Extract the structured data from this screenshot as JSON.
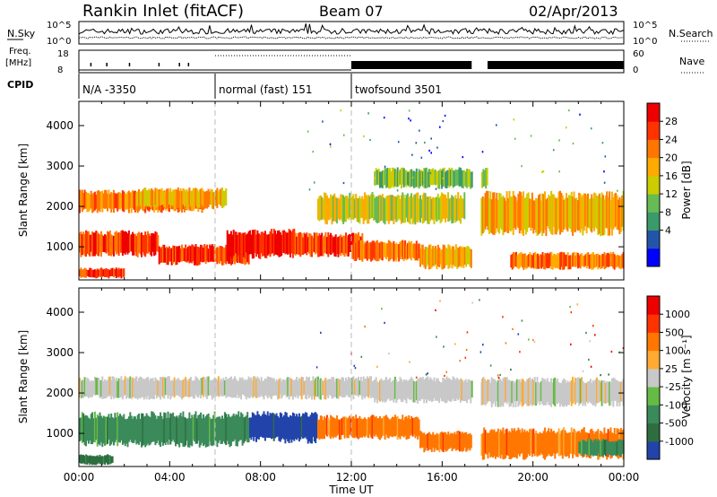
{
  "header": {
    "station": "Rankin Inlet (fitACF)",
    "beam": "Beam 07",
    "date": "02/Apr/2013"
  },
  "noise_panel": {
    "left_label": "N.Sky",
    "right_label": "N.Search",
    "ticks_left": [
      "10^5",
      "10^0"
    ],
    "ticks_right": [
      "10^5",
      "10^0"
    ]
  },
  "freq_panel": {
    "label_line1": "Freq.",
    "label_line2": "[MHz]",
    "right_label": "Nave",
    "ticks_left": [
      "18",
      "8"
    ],
    "ticks_right": [
      "60",
      "0"
    ]
  },
  "cpid": {
    "label": "CPID",
    "segments": [
      {
        "text": "N/A -3350",
        "start_hour": 0.0
      },
      {
        "text": "normal (fast) 151",
        "start_hour": 6.0
      },
      {
        "text": "twofsound 3501",
        "start_hour": 12.0
      }
    ]
  },
  "x_axis": {
    "label": "Time UT",
    "ticks": [
      "00:00",
      "04:00",
      "08:00",
      "12:00",
      "16:00",
      "20:00",
      "00:00"
    ],
    "tick_hours": [
      0,
      4,
      8,
      12,
      16,
      20,
      24
    ]
  },
  "chart_data": [
    {
      "type": "heatmap",
      "name": "power",
      "ylabel": "Slant Range [km]",
      "yticks": [
        "4000",
        "3000",
        "2000",
        "1000"
      ],
      "ytick_values": [
        4000,
        3000,
        2000,
        1000
      ],
      "ylim": [
        180,
        4600
      ],
      "xlim": [
        0,
        24
      ],
      "colorbar": {
        "label": "Power [dB]",
        "tick_labels": [
          "28",
          "24",
          "20",
          "16",
          "12",
          "8",
          "4"
        ],
        "tick_values": [
          28,
          24,
          20,
          16,
          12,
          8,
          4
        ],
        "colors": [
          "#0000ff",
          "#2255aa",
          "#3a9a6a",
          "#66bb55",
          "#cccc00",
          "#ffaa00",
          "#ff7700",
          "#ff3300",
          "#ee0000"
        ]
      },
      "bands": [
        {
          "t0": 0.0,
          "t1": 5.5,
          "r0": 1800,
          "r1": 2450,
          "v": 22
        },
        {
          "t0": 2.5,
          "t1": 6.5,
          "r0": 1900,
          "r1": 2500,
          "v": 17
        },
        {
          "t0": 0.0,
          "t1": 3.5,
          "r0": 700,
          "r1": 1450,
          "v": 24
        },
        {
          "t0": 3.5,
          "t1": 7.5,
          "r0": 500,
          "r1": 1100,
          "v": 23
        },
        {
          "t0": 6.5,
          "t1": 9.5,
          "r0": 650,
          "r1": 1500,
          "v": 27
        },
        {
          "t0": 9.5,
          "t1": 12.5,
          "r0": 700,
          "r1": 1400,
          "v": 24
        },
        {
          "t0": 12.0,
          "t1": 15.0,
          "r0": 600,
          "r1": 1200,
          "v": 22
        },
        {
          "t0": 10.5,
          "t1": 17.0,
          "r0": 1500,
          "r1": 2400,
          "v": 14
        },
        {
          "t0": 15.0,
          "t1": 17.3,
          "r0": 400,
          "r1": 1100,
          "v": 16
        },
        {
          "t0": 17.7,
          "t1": 24.0,
          "r0": 1200,
          "r1": 2450,
          "v": 19
        },
        {
          "t0": 19.0,
          "t1": 24.0,
          "r0": 400,
          "r1": 900,
          "v": 21
        },
        {
          "t0": 0.0,
          "t1": 2.0,
          "r0": 200,
          "r1": 500,
          "v": 26
        },
        {
          "t0": 13.0,
          "t1": 18.0,
          "r0": 2400,
          "r1": 3000,
          "v": 10
        }
      ]
    },
    {
      "type": "heatmap",
      "name": "velocity",
      "ylabel": "Slant Range [km]",
      "yticks": [
        "4000",
        "3000",
        "2000",
        "1000"
      ],
      "ytick_values": [
        4000,
        3000,
        2000,
        1000
      ],
      "ylim": [
        180,
        4600
      ],
      "xlim": [
        0,
        24
      ],
      "colorbar": {
        "label": "Velocity [m s⁻¹]",
        "tick_labels": [
          "1000",
          "500",
          "100",
          "25",
          "-25",
          "-100",
          "-500",
          "-1000"
        ],
        "colors": [
          "#2244aa",
          "#2e6e3e",
          "#3a8a5a",
          "#66bb44",
          "#c8c8c8",
          "#ffaa33",
          "#ff7700",
          "#ff3300",
          "#ee0000"
        ]
      },
      "bands": [
        {
          "t0": 0.0,
          "t1": 13.0,
          "r0": 1800,
          "r1": 2450,
          "v": 4
        },
        {
          "t0": 13.0,
          "t1": 18.0,
          "r0": 1700,
          "r1": 2450,
          "v": 4
        },
        {
          "t0": 17.7,
          "t1": 24.0,
          "r0": 1600,
          "r1": 2450,
          "v": 4
        },
        {
          "t0": 0.0,
          "t1": 7.5,
          "r0": 600,
          "r1": 1600,
          "v": 2
        },
        {
          "t0": 7.5,
          "t1": 10.5,
          "r0": 700,
          "r1": 1600,
          "v": 0
        },
        {
          "t0": 10.5,
          "t1": 15.0,
          "r0": 800,
          "r1": 1500,
          "v": 6
        },
        {
          "t0": 15.0,
          "t1": 17.3,
          "r0": 500,
          "r1": 1100,
          "v": 6
        },
        {
          "t0": 17.7,
          "t1": 24.0,
          "r0": 300,
          "r1": 1200,
          "v": 6
        },
        {
          "t0": 22.0,
          "t1": 24.0,
          "r0": 400,
          "r1": 900,
          "v": 2
        },
        {
          "t0": 0.0,
          "t1": 1.5,
          "r0": 200,
          "r1": 500,
          "v": 1
        }
      ]
    }
  ]
}
